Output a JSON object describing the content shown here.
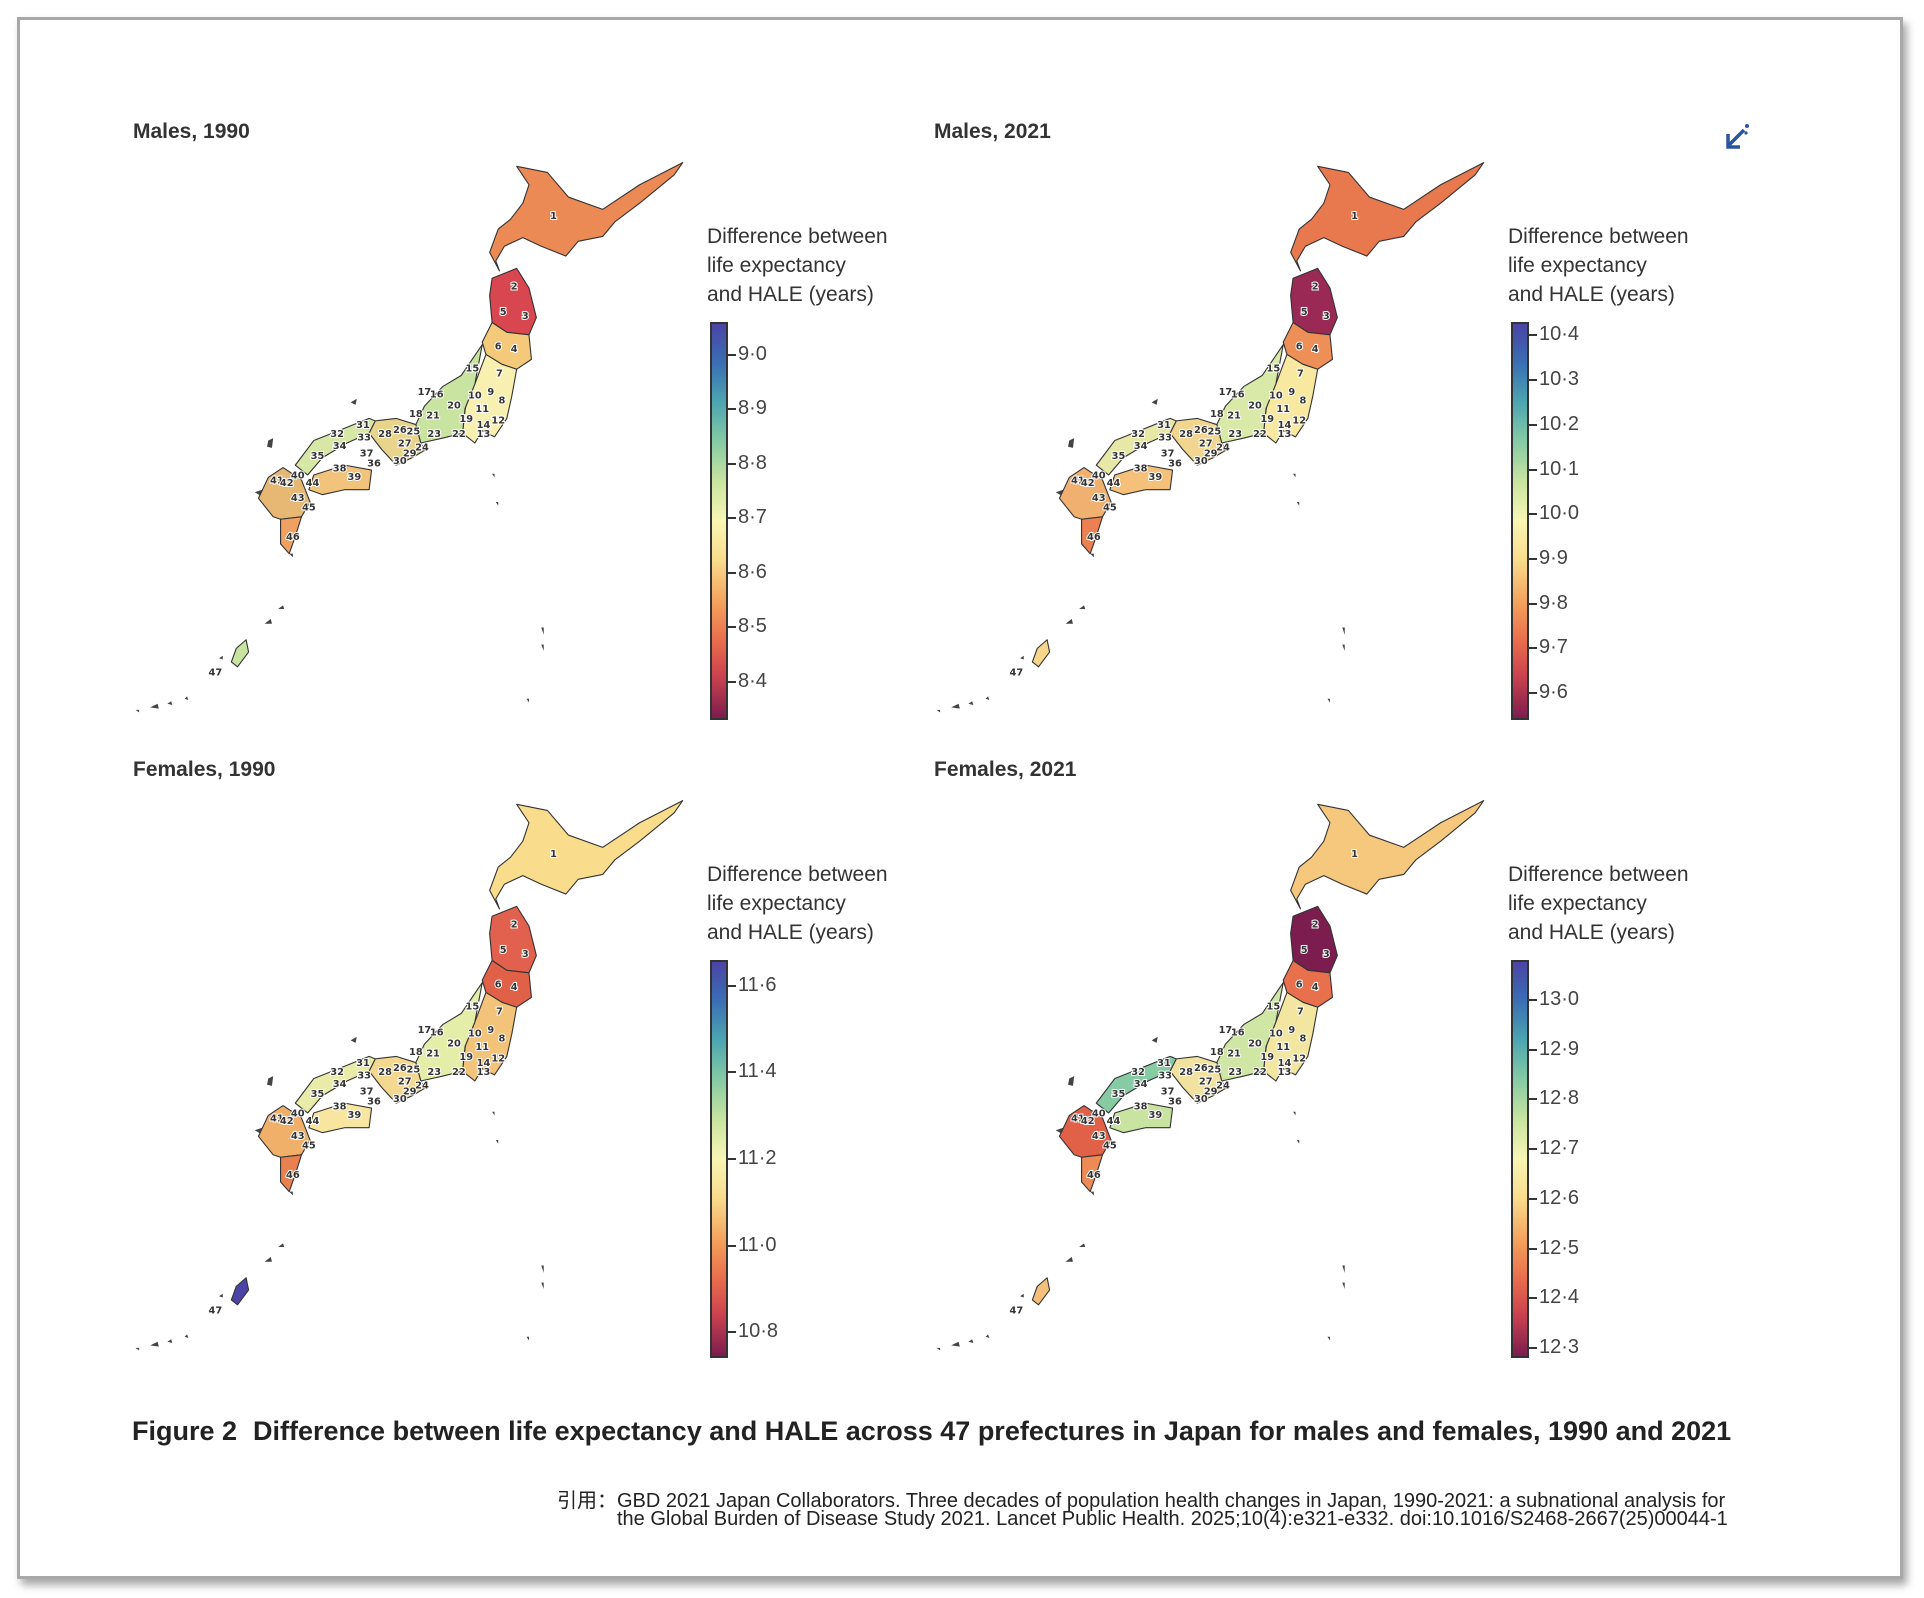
{
  "figure": {
    "label": "Figure 2",
    "title": "Difference between life expectancy and HALE across 47 prefectures in Japan for males and females, 1990 and 2021"
  },
  "citation": {
    "line1": "引用：GBD 2021 Japan Collaborators. Three decades of population health changes in Japan, 1990-2021: a subnational analysis for",
    "line2": "the Global Burden of Disease Study 2021. Lancet Public Health. 2025;10(4):e321-e332. doi:10.1016/S2468-2667(25)00044-1"
  },
  "corner_icon": "collapse-arrow-icon",
  "colors": {
    "scale": [
      "#7b1d4e",
      "#c8404f",
      "#ea6f4c",
      "#f4a55e",
      "#f9dc8c",
      "#f8f6b4",
      "#c9e4a0",
      "#86cba4",
      "#4da6b0",
      "#3a6fb4",
      "#4b44a6"
    ]
  },
  "prefecture_labels": [
    "1",
    "2",
    "3",
    "4",
    "5",
    "6",
    "7",
    "8",
    "9",
    "10",
    "11",
    "12",
    "13",
    "14",
    "15",
    "16",
    "17",
    "18",
    "19",
    "20",
    "21",
    "22",
    "23",
    "24",
    "25",
    "26",
    "27",
    "28",
    "29",
    "30",
    "31",
    "32",
    "33",
    "34",
    "35",
    "36",
    "37",
    "38",
    "39",
    "40",
    "41",
    "42",
    "43",
    "44",
    "45",
    "46",
    "47"
  ],
  "chart_data": [
    {
      "type": "choropleth",
      "title": "Males, 1990",
      "legend_title": "Difference between\nlife expectancy\nand HALE (years)",
      "range": [
        8.33,
        9.06
      ],
      "ticks": [
        9.0,
        8.9,
        8.8,
        8.7,
        8.6,
        8.5,
        8.4
      ],
      "tick_labels": [
        "9·0",
        "8·9",
        "8·8",
        "8·7",
        "8·6",
        "8·5",
        "8·4"
      ],
      "region_colors": {
        "hokkaido": "#ec8a55",
        "tohoku_north": "#d8474f",
        "tohoku_south": "#f4c97a",
        "kanto": "#f8f0b0",
        "chubu": "#c9e4a0",
        "nagano": "#4b44a6",
        "kinki": "#e8d48a",
        "chugoku": "#d7e8a6",
        "shikoku": "#f2c37a",
        "kyushu": "#e7b873",
        "kagoshima": "#f0a060",
        "okinawa": "#c9e4a0"
      }
    },
    {
      "type": "choropleth",
      "title": "Males, 2021",
      "legend_title": "Difference between\nlife expectancy\nand HALE (years)",
      "range": [
        9.54,
        10.43
      ],
      "ticks": [
        10.4,
        10.3,
        10.2,
        10.1,
        10.0,
        9.9,
        9.8,
        9.7,
        9.6
      ],
      "tick_labels": [
        "10·4",
        "10·3",
        "10·2",
        "10·1",
        "10·0",
        "9·9",
        "9·8",
        "9·7",
        "9·6"
      ],
      "region_colors": {
        "hokkaido": "#e8794f",
        "tohoku_north": "#9a2a55",
        "tohoku_south": "#ee8f58",
        "kanto": "#f8e8a0",
        "chubu": "#d9eaa8",
        "nagano": "#4b44a6",
        "kinki": "#f2d690",
        "chugoku": "#e7e8a6",
        "shikoku": "#f4c07a",
        "kyushu": "#f0b070",
        "kagoshima": "#ec8050",
        "okinawa": "#f6d68a"
      }
    },
    {
      "type": "choropleth",
      "title": "Females, 1990",
      "legend_title": "Difference between\nlife expectancy\nand HALE (years)",
      "range": [
        10.74,
        11.66
      ],
      "ticks": [
        11.6,
        11.4,
        11.2,
        11.0,
        10.8
      ],
      "tick_labels": [
        "11·6",
        "11·4",
        "11·2",
        "11·0",
        "10·8"
      ],
      "region_colors": {
        "hokkaido": "#f9dc8c",
        "tohoku_north": "#e2604e",
        "tohoku_south": "#e06048",
        "kanto": "#f4c37a",
        "chubu": "#e4eea8",
        "nagano": "#f8f2b0",
        "kinki": "#f4d890",
        "chugoku": "#e9eca8",
        "shikoku": "#f8e6a0",
        "kyushu": "#f0b06a",
        "kagoshima": "#e98050",
        "okinawa": "#4b44a6"
      }
    },
    {
      "type": "choropleth",
      "title": "Females, 2021",
      "legend_title": "Difference between\nlife expectancy\nand HALE (years)",
      "range": [
        12.28,
        13.08
      ],
      "ticks": [
        13.0,
        12.9,
        12.8,
        12.7,
        12.6,
        12.5,
        12.4,
        12.3
      ],
      "tick_labels": [
        "13·0",
        "12·9",
        "12·8",
        "12·7",
        "12·6",
        "12·5",
        "12·4",
        "12·3"
      ],
      "region_colors": {
        "hokkaido": "#f6c87e",
        "tohoku_north": "#7b1d4e",
        "tohoku_south": "#e8704c",
        "kanto": "#f2e6a0",
        "chubu": "#d0e6a4",
        "nagano": "#86cba4",
        "kinki": "#f2e2a0",
        "chugoku": "#86cba4",
        "shikoku": "#c9e4a0",
        "kyushu": "#e06048",
        "kagoshima": "#ee8a55",
        "okinawa": "#f4c07a"
      }
    }
  ]
}
